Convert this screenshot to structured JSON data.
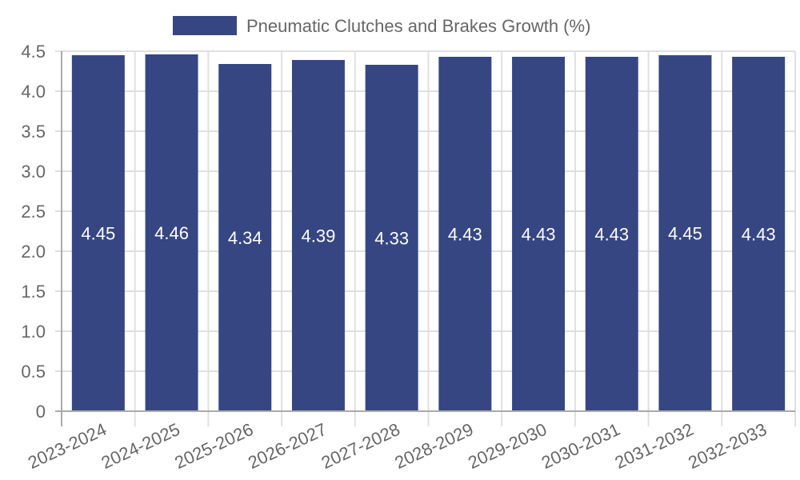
{
  "chart_data": {
    "type": "bar",
    "title": "",
    "xlabel": "",
    "ylabel": "",
    "categories": [
      "2023-2024",
      "2024-2025",
      "2025-2026",
      "2026-2027",
      "2027-2028",
      "2028-2029",
      "2029-2030",
      "2030-2031",
      "2031-2032",
      "2032-2033"
    ],
    "series": [
      {
        "name": "Pneumatic Clutches and Brakes Growth (%)",
        "values": [
          4.45,
          4.46,
          4.34,
          4.39,
          4.33,
          4.43,
          4.43,
          4.43,
          4.45,
          4.43
        ],
        "color": "#364683"
      }
    ],
    "ylim": [
      0,
      4.5
    ],
    "yticks": [
      "0",
      "0.5",
      "1.0",
      "1.5",
      "2.0",
      "2.5",
      "3.0",
      "3.5",
      "4.0",
      "4.5"
    ],
    "grid": true,
    "legend_position": "top",
    "data_labels": true
  },
  "legend": {
    "label": "Pneumatic Clutches and Brakes Growth (%)",
    "color": "#364683"
  }
}
